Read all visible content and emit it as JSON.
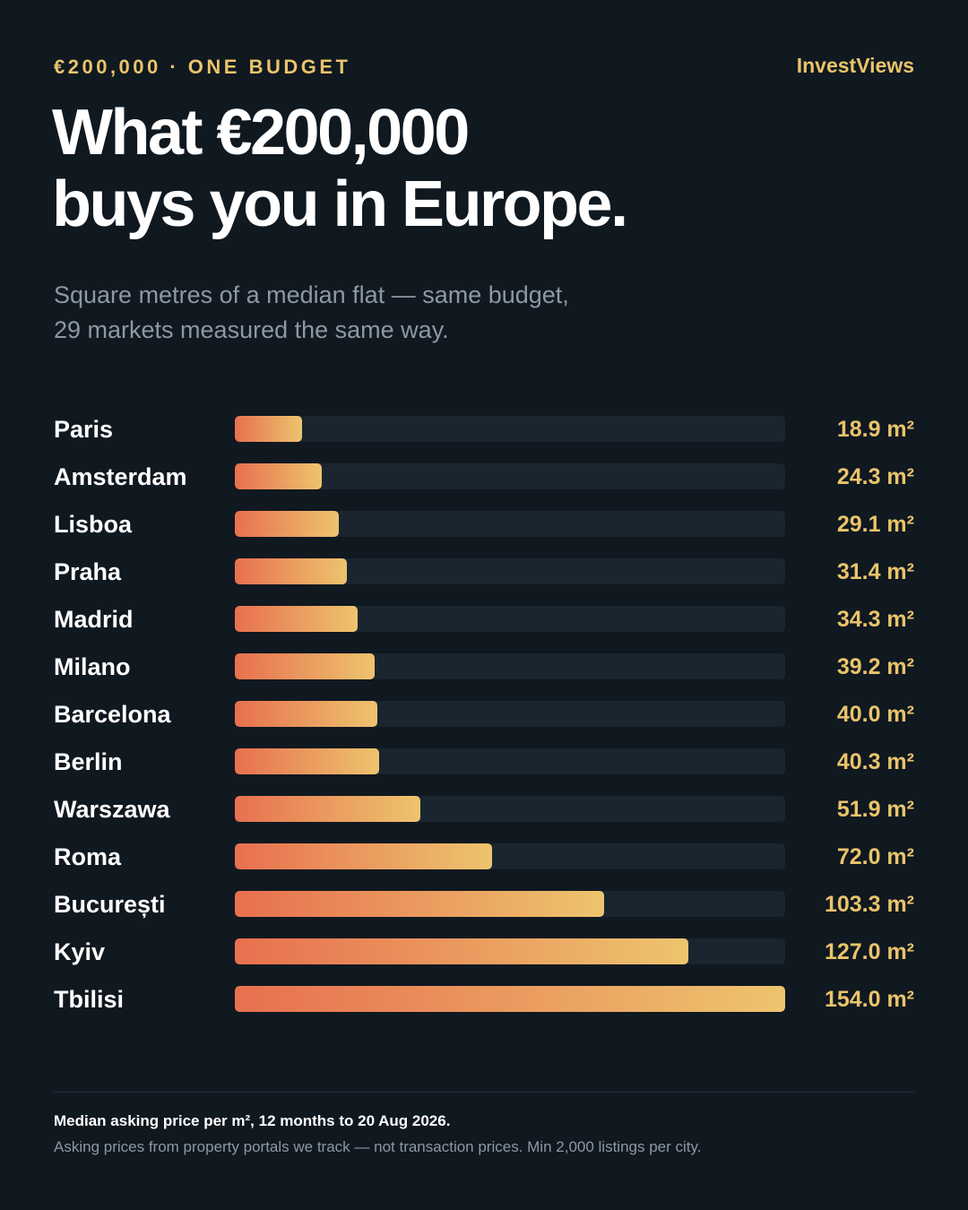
{
  "header": {
    "kicker": "€200,000 · ONE BUDGET",
    "brand": "InvestViews",
    "title_line1": "What €200,000",
    "title_line2": "buys you in Europe.",
    "subtitle_line1": "Square metres of a median flat — same budget,",
    "subtitle_line2": "29 markets measured the same way."
  },
  "chart_data": {
    "type": "bar",
    "orientation": "horizontal",
    "unit": "m²",
    "categories": [
      "Paris",
      "Amsterdam",
      "Lisboa",
      "Praha",
      "Madrid",
      "Milano",
      "Barcelona",
      "Berlin",
      "Warszawa",
      "Roma",
      "București",
      "Kyiv",
      "Tbilisi"
    ],
    "values": [
      18.9,
      24.3,
      29.1,
      31.4,
      34.3,
      39.2,
      40.0,
      40.3,
      51.9,
      72.0,
      103.3,
      127.0,
      154.0
    ],
    "labels": [
      "18.9 m²",
      "24.3 m²",
      "29.1 m²",
      "31.4 m²",
      "34.3 m²",
      "39.2 m²",
      "40.0 m²",
      "40.3 m²",
      "51.9 m²",
      "72.0 m²",
      "103.3 m²",
      "127.0 m²",
      "154.0 m²"
    ],
    "xlim": [
      0,
      154.0
    ],
    "grid": false,
    "legend": "none",
    "colors": {
      "bar_start": "#e8704f",
      "bar_end": "#edc46e",
      "track": "#1a2530",
      "value_text": "#e9c46a"
    }
  },
  "footer": {
    "note_bold": "Median asking price per m², 12 months to 20 Aug 2026.",
    "note": "Asking prices from property portals we track — not transaction prices. Min 2,000 listings per city."
  },
  "colors": {
    "background": "#101820",
    "accent": "#e9c46a",
    "muted_text": "#8d98a3"
  }
}
